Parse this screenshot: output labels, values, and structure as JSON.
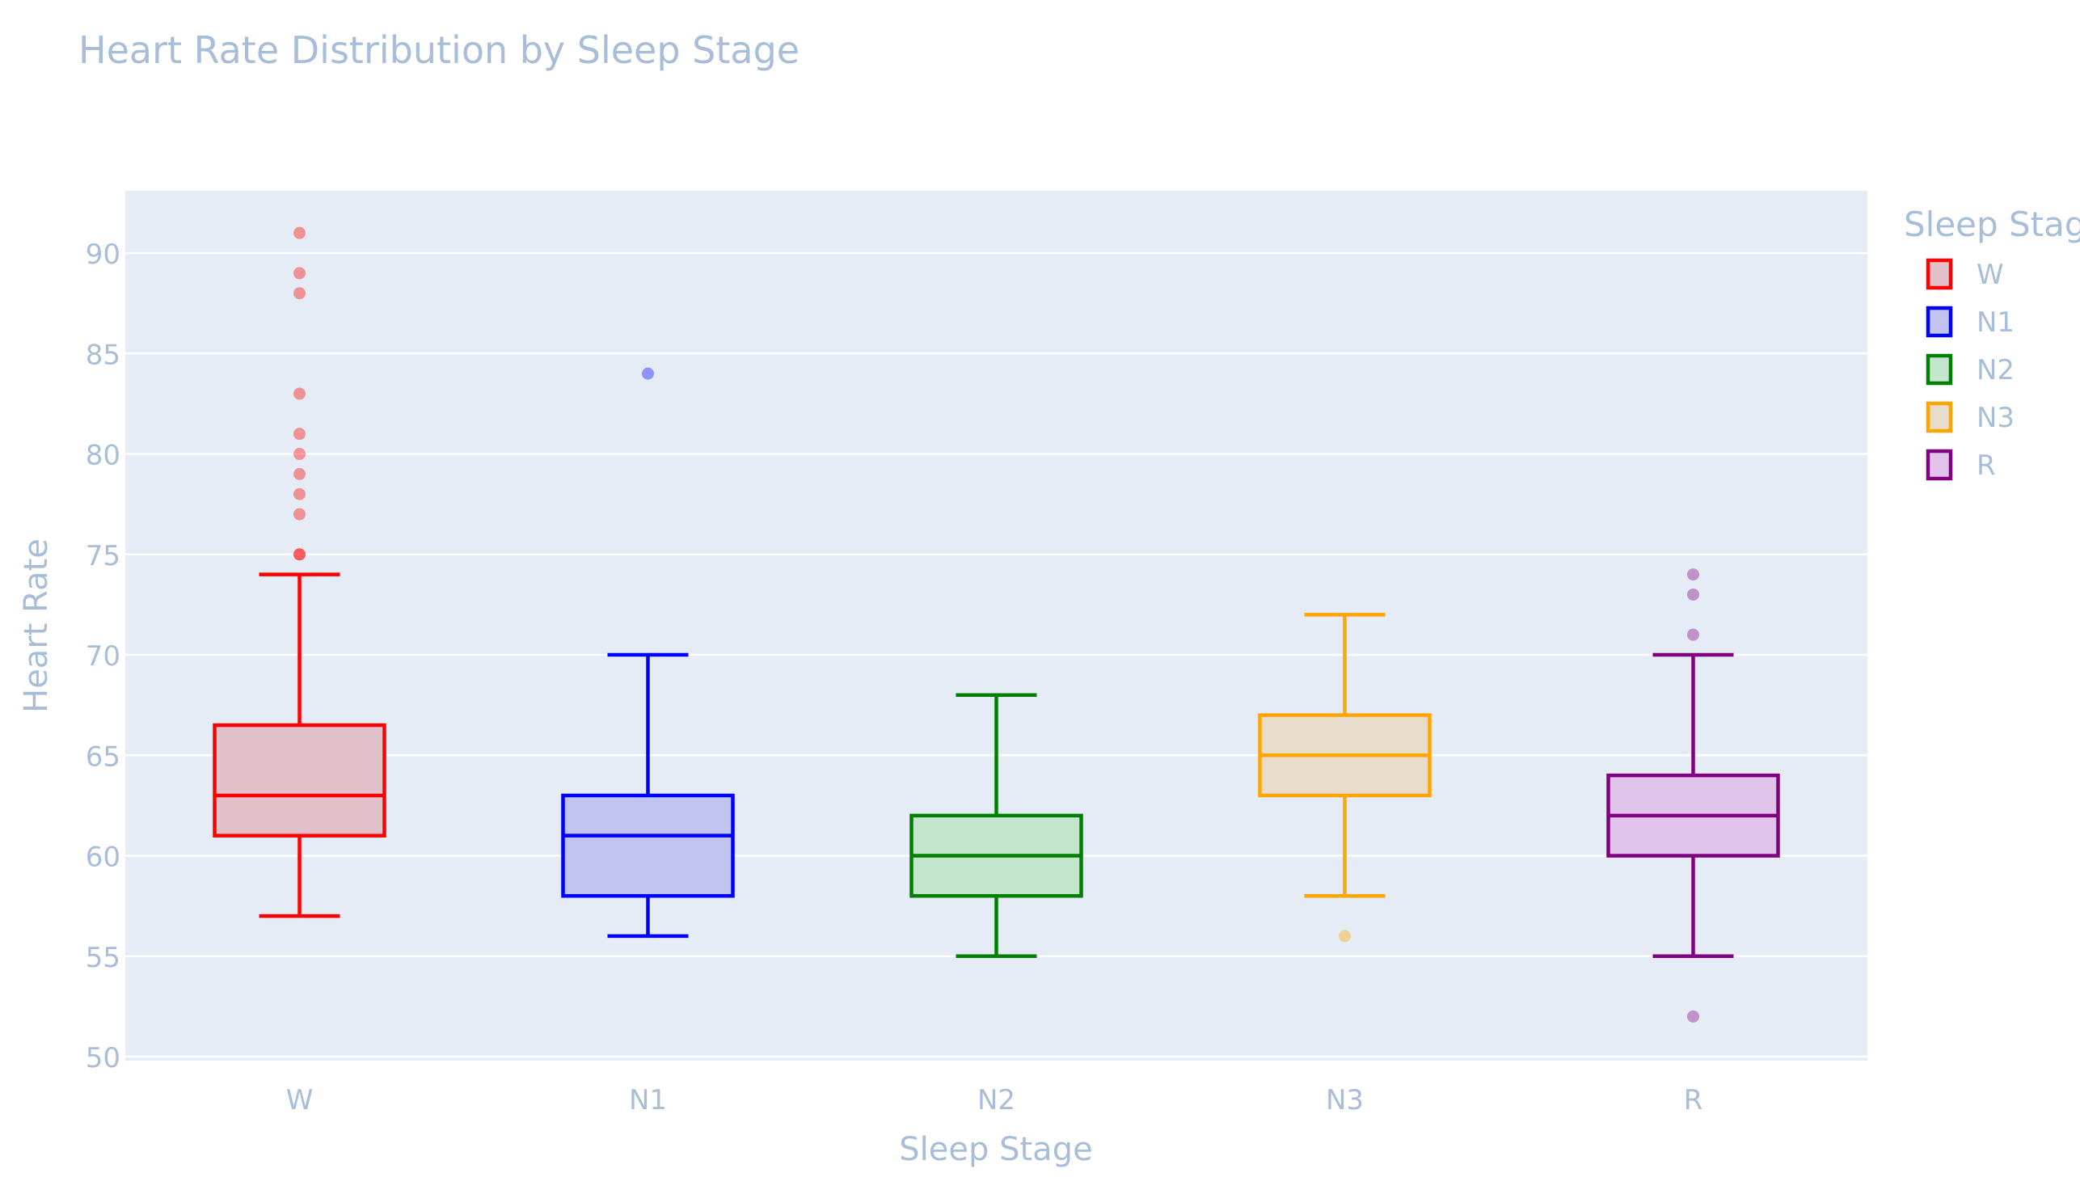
{
  "chart_data": {
    "type": "box",
    "title": "Heart Rate Distribution by Sleep Stage",
    "xlabel": "Sleep Stage",
    "ylabel": "Heart Rate",
    "categories": [
      "W",
      "N1",
      "N2",
      "N3",
      "R"
    ],
    "ylim": [
      49.8,
      93.1
    ],
    "yticks": [
      50,
      55,
      60,
      65,
      70,
      75,
      80,
      85,
      90
    ],
    "grid": true,
    "legend": {
      "title": "Sleep Stage",
      "placement": "top-right",
      "entries": [
        "W",
        "N1",
        "N2",
        "N3",
        "R"
      ]
    },
    "series": [
      {
        "name": "W",
        "color": "#ff0000",
        "fill": "#e3c1cb",
        "q1": 61,
        "median": 63,
        "q3": 66.5,
        "lower_whisker": 57,
        "upper_whisker": 74,
        "outliers": [
          75,
          75,
          77,
          78,
          79,
          80,
          81,
          83,
          88,
          89,
          91
        ]
      },
      {
        "name": "N1",
        "color": "#0000ff",
        "fill": "#c1c3f1",
        "q1": 58,
        "median": 61,
        "q3": 63,
        "lower_whisker": 56,
        "upper_whisker": 70,
        "outliers": [
          84
        ]
      },
      {
        "name": "N2",
        "color": "#008000",
        "fill": "#c3e6cd",
        "q1": 58,
        "median": 60,
        "q3": 62,
        "lower_whisker": 55,
        "upper_whisker": 68,
        "outliers": []
      },
      {
        "name": "N3",
        "color": "#ffa500",
        "fill": "#e8dccb",
        "q1": 63,
        "median": 65,
        "q3": 67,
        "lower_whisker": 58,
        "upper_whisker": 72,
        "outliers": [
          56
        ]
      },
      {
        "name": "R",
        "color": "#800080",
        "fill": "#e2c3ec",
        "q1": 60,
        "median": 62,
        "q3": 64,
        "lower_whisker": 55,
        "upper_whisker": 70,
        "outliers": [
          52,
          71,
          73,
          74
        ]
      }
    ]
  },
  "style": {
    "plot_background": "#e5ecf6",
    "gridline_color": "#ffffff",
    "text_color": "#a8bdd8"
  }
}
